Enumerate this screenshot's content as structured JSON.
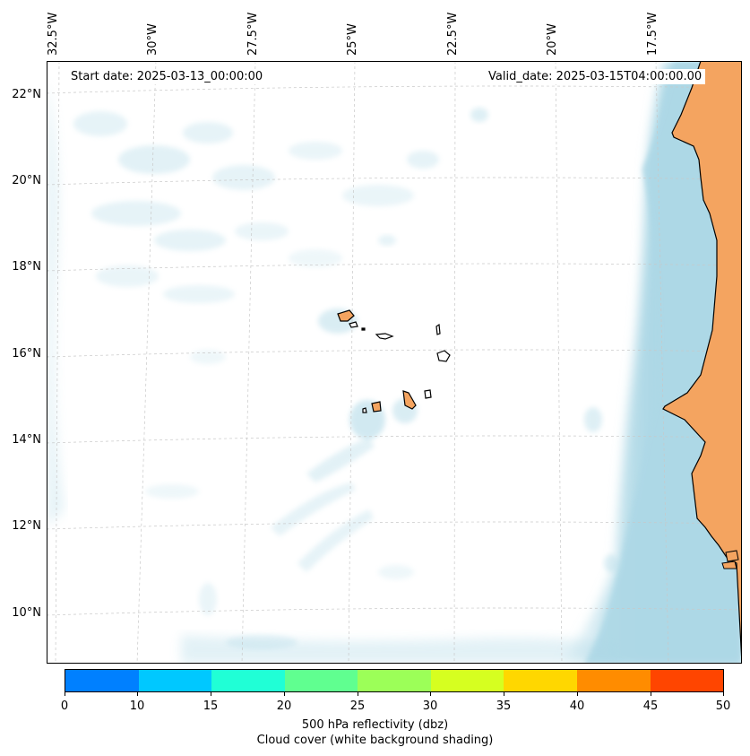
{
  "map": {
    "start_date": "Start date: 2025-03-13_00:00:00",
    "valid_date": "Valid_date: 2025-03-15T04:00:00.00",
    "longitude_labels": [
      "32.5°W",
      "30°W",
      "27.5°W",
      "25°W",
      "22.5°W",
      "20°W",
      "17.5°W"
    ],
    "latitude_labels": [
      "22°N",
      "20°N",
      "18°N",
      "16°N",
      "14°N",
      "12°N",
      "10°N"
    ],
    "region": "Cape Verde islands and West African coast (Senegal, Gambia, Guinea-Bissau)"
  },
  "colorbar": {
    "ticks": [
      "0",
      "10",
      "15",
      "20",
      "25",
      "30",
      "35",
      "40",
      "45",
      "50"
    ],
    "colors": [
      "#0080ff",
      "#00c8ff",
      "#20ffd6",
      "#60ff90",
      "#9cff58",
      "#d6ff20",
      "#ffd700",
      "#ff8c00",
      "#ff4500"
    ],
    "label_line1": "500 hPa reflectivity (dbz)",
    "label_line2": "Cloud cover (white background shading)"
  },
  "colors": {
    "land": "#f4a460",
    "cloud": "#add8e6",
    "gridline": "#c8c8c8",
    "coastline": "#000000"
  }
}
